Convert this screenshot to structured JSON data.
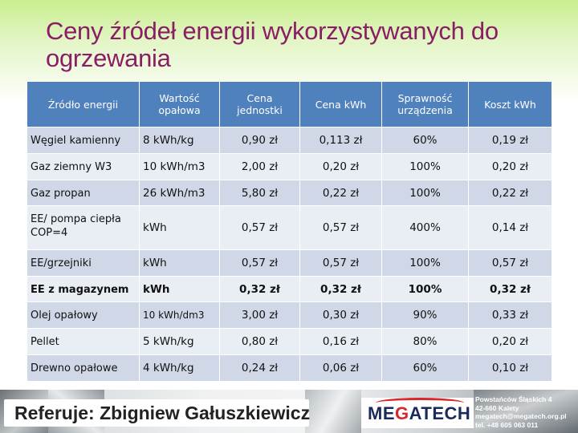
{
  "title": "Ceny źródeł energii wykorzystywanych do ogrzewania",
  "table": {
    "headers": [
      "Źródło energii",
      "Wartość opałowa",
      "Cena jednostki",
      "Cena kWh",
      "Sprawność urządzenia",
      "Koszt kWh"
    ],
    "rows": [
      [
        "Węgiel kamienny",
        "8 kWh/kg",
        "0,90 zł",
        "0,113 zł",
        "60%",
        "0,19 zł"
      ],
      [
        "Gaz ziemny W3",
        "10 kWh/m3",
        "2,00 zł",
        "0,20 zł",
        "100%",
        "0,20 zł"
      ],
      [
        "Gaz propan",
        "26 kWh/m3",
        "5,80 zł",
        "0,22 zł",
        "100%",
        "0,22 zł"
      ],
      [
        "EE/ pompa ciepła COP=4",
        "kWh",
        "0,57 zł",
        "0,57 zł",
        "400%",
        "0,14 zł"
      ],
      [
        "EE/grzejniki",
        "kWh",
        "0,57 zł",
        "0,57 zł",
        "100%",
        "0,57 zł"
      ],
      [
        "EE z magazynem",
        "kWh",
        "0,32 zł",
        "0,32 zł",
        "100%",
        "0,32 zł"
      ],
      [
        "Olej opałowy",
        "10 kWh/dm3",
        "3,00 zł",
        "0,30 zł",
        "90%",
        "0,33 zł"
      ],
      [
        "Pellet",
        "5 kWh/kg",
        "0,80 zł",
        "0,16 zł",
        "80%",
        "0,20 zł"
      ],
      [
        "Drewno opałowe",
        "4 kWh/kg",
        "0,24 zł",
        "0,06 zł",
        "60%",
        "0,10 zł"
      ]
    ]
  },
  "footer": {
    "referuje": "Referuje: Zbigniew Gałuszkiewicz",
    "logo_me": "ME",
    "logo_g": "G",
    "logo_atech": "ATECH",
    "address": [
      "Powstańców Śląskich 4",
      "42-660 Kalety",
      "megatech@megatech.org.pl",
      "tel. +48 605 063 011"
    ]
  },
  "colors": {
    "title": "#8a1d66",
    "header_bg": "#4f81bd",
    "row_odd": "#d0d8e8",
    "row_even": "#e9edf4",
    "logo_red": "#d8262b",
    "logo_blue": "#1a2a5c"
  }
}
